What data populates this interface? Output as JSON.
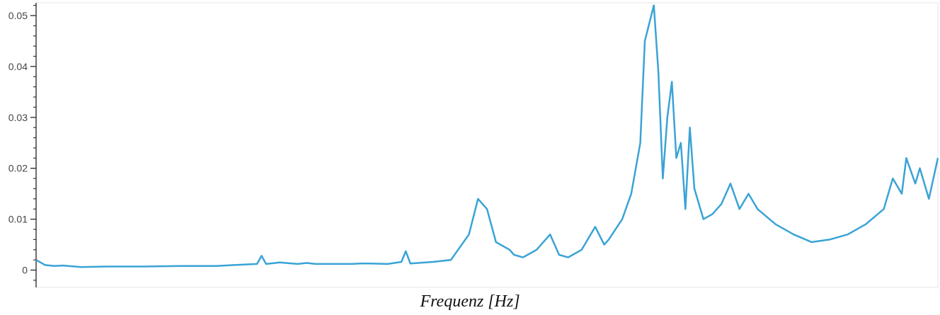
{
  "chart_data": {
    "type": "line",
    "title": "",
    "xlabel": "Frequenz [Hz]",
    "ylabel": "",
    "ylim": [
      -0.0034,
      0.0525
    ],
    "y_ticks": [
      0,
      0.01,
      0.02,
      0.03,
      0.04,
      0.05
    ],
    "y_tick_labels": [
      "0",
      "0.01",
      "0.02",
      "0.03",
      "0.04",
      "0.05"
    ],
    "x_tick_labels": [],
    "grid": false,
    "legend": "none",
    "series": [
      {
        "color": "#3aa3d6",
        "x": [
          0,
          0.01,
          0.02,
          0.03,
          0.05,
          0.08,
          0.12,
          0.16,
          0.2,
          0.22,
          0.245,
          0.25,
          0.255,
          0.27,
          0.29,
          0.3,
          0.31,
          0.33,
          0.35,
          0.36,
          0.37,
          0.39,
          0.405,
          0.41,
          0.415,
          0.44,
          0.46,
          0.47,
          0.48,
          0.49,
          0.5,
          0.51,
          0.515,
          0.525,
          0.53,
          0.54,
          0.545,
          0.555,
          0.57,
          0.58,
          0.59,
          0.595,
          0.605,
          0.62,
          0.63,
          0.635,
          0.65,
          0.66,
          0.67,
          0.675,
          0.685,
          0.69,
          0.695,
          0.7,
          0.705,
          0.71,
          0.715,
          0.72,
          0.725,
          0.73,
          0.74,
          0.75,
          0.76,
          0.77,
          0.78,
          0.79,
          0.8,
          0.82,
          0.84,
          0.86,
          0.88,
          0.9,
          0.92,
          0.94,
          0.95,
          0.96,
          0.965,
          0.975,
          0.98,
          0.99,
          1.0
        ],
        "y": [
          0.002,
          0.001,
          0.0008,
          0.0009,
          0.0006,
          0.0007,
          0.0007,
          0.0008,
          0.0008,
          0.001,
          0.0012,
          0.0028,
          0.0012,
          0.0015,
          0.0012,
          0.0014,
          0.0012,
          0.0012,
          0.0012,
          0.0013,
          0.0013,
          0.0012,
          0.0016,
          0.0037,
          0.0013,
          0.0016,
          0.002,
          0.0045,
          0.007,
          0.014,
          0.012,
          0.0055,
          0.005,
          0.004,
          0.003,
          0.0025,
          0.003,
          0.004,
          0.007,
          0.003,
          0.0025,
          0.003,
          0.004,
          0.0085,
          0.005,
          0.006,
          0.01,
          0.015,
          0.025,
          0.045,
          0.052,
          0.039,
          0.018,
          0.03,
          0.037,
          0.022,
          0.025,
          0.012,
          0.028,
          0.016,
          0.01,
          0.011,
          0.013,
          0.017,
          0.012,
          0.015,
          0.012,
          0.009,
          0.007,
          0.0055,
          0.006,
          0.007,
          0.009,
          0.012,
          0.018,
          0.015,
          0.022,
          0.017,
          0.02,
          0.014,
          0.022
        ]
      }
    ]
  }
}
